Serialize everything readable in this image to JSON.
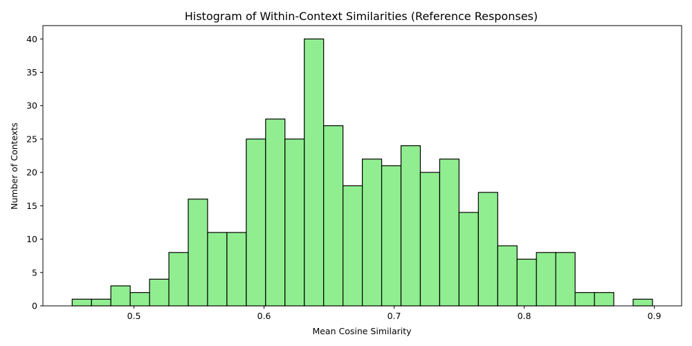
{
  "chart_data": {
    "type": "bar",
    "title": "Histogram of Within-Context Similarities (Reference Responses)",
    "xlabel": "Mean Cosine Similarity",
    "ylabel": "Number of Contexts",
    "bin_start": 0.4525,
    "bin_width": 0.01487,
    "values": [
      1,
      1,
      3,
      2,
      4,
      8,
      16,
      11,
      11,
      25,
      28,
      25,
      40,
      27,
      18,
      22,
      21,
      24,
      20,
      22,
      14,
      17,
      9,
      7,
      8,
      8,
      2,
      2,
      0,
      1
    ],
    "xlim": [
      0.43,
      0.921
    ],
    "ylim": [
      0,
      42
    ],
    "xticks": [
      0.5,
      0.6,
      0.7,
      0.8,
      0.9
    ],
    "xtick_labels": [
      "0.5",
      "0.6",
      "0.7",
      "0.8",
      "0.9"
    ],
    "yticks": [
      0,
      5,
      10,
      15,
      20,
      25,
      30,
      35,
      40
    ],
    "ytick_labels": [
      "0",
      "5",
      "10",
      "15",
      "20",
      "25",
      "30",
      "35",
      "40"
    ],
    "bar_color": "#90EE90",
    "edge_color": "#000000",
    "grid": false
  }
}
